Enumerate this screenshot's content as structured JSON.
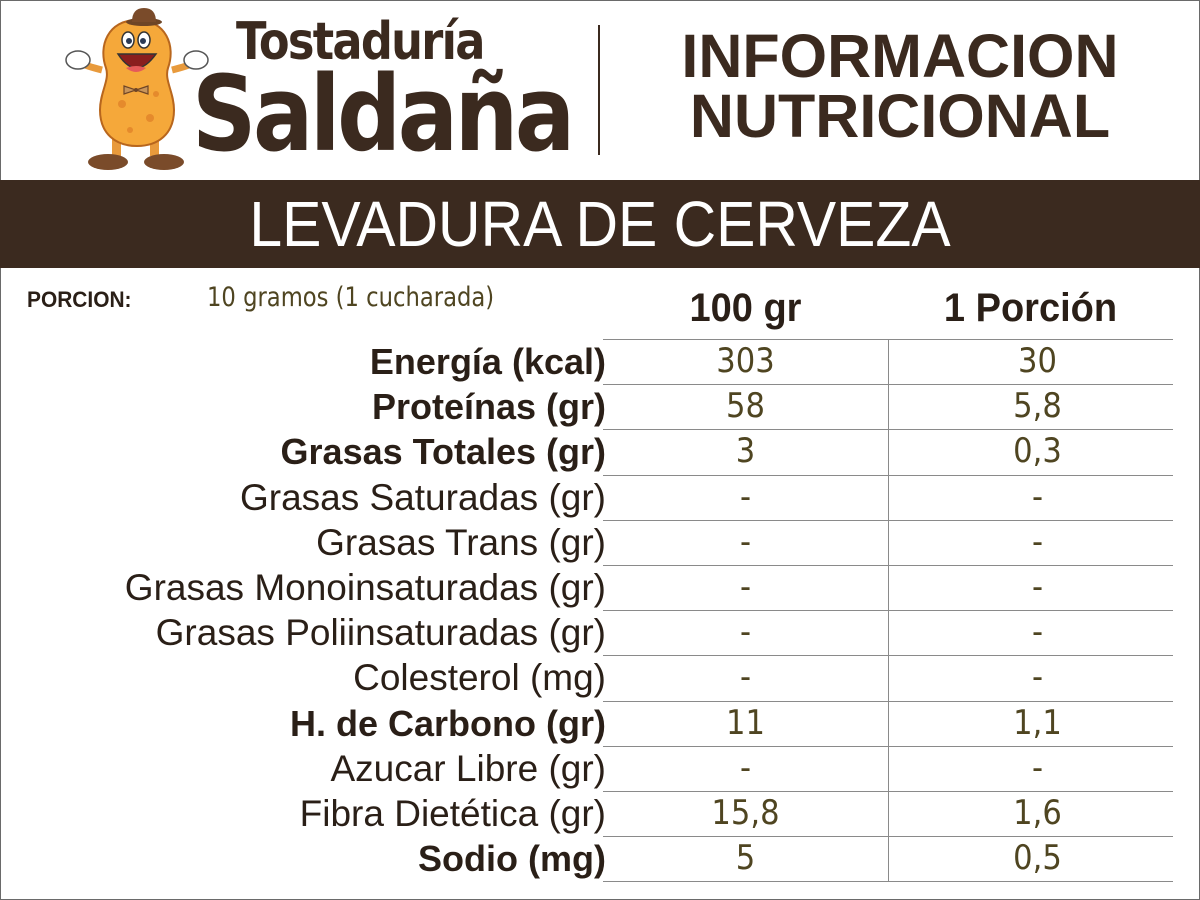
{
  "header": {
    "brand_top": "Tostaduría",
    "brand_main": "Saldaña",
    "title_line1": "INFORMACION",
    "title_line2": "NUTRICIONAL",
    "mascot_icon": "peanut-mascot-icon"
  },
  "banner": {
    "product_name": "LEVADURA DE CERVEZA"
  },
  "portion": {
    "label": "PORCION:",
    "value": "10 gramos (1 cucharada)"
  },
  "columns": {
    "per_100": "100 gr",
    "per_portion": "1 Porción"
  },
  "rows": [
    {
      "label": "Energía (kcal)",
      "bold": true,
      "per_100": "303",
      "per_portion": "30"
    },
    {
      "label": "Proteínas (gr)",
      "bold": true,
      "per_100": "58",
      "per_portion": "5,8"
    },
    {
      "label": "Grasas Totales (gr)",
      "bold": true,
      "per_100": "3",
      "per_portion": "0,3"
    },
    {
      "label": "Grasas Saturadas (gr)",
      "bold": false,
      "per_100": "-",
      "per_portion": "-"
    },
    {
      "label": "Grasas Trans (gr)",
      "bold": false,
      "per_100": "-",
      "per_portion": "-"
    },
    {
      "label": "Grasas Monoinsaturadas (gr)",
      "bold": false,
      "per_100": "-",
      "per_portion": "-"
    },
    {
      "label": "Grasas Poliinsaturadas (gr)",
      "bold": false,
      "per_100": "-",
      "per_portion": "-"
    },
    {
      "label": "Colesterol (mg)",
      "bold": false,
      "per_100": "-",
      "per_portion": "-"
    },
    {
      "label": "H. de Carbono (gr)",
      "bold": true,
      "per_100": "11",
      "per_portion": "1,1"
    },
    {
      "label": "Azucar Libre (gr)",
      "bold": false,
      "per_100": "-",
      "per_portion": "-"
    },
    {
      "label": "Fibra Dietética (gr)",
      "bold": false,
      "per_100": "15,8",
      "per_portion": "1,6"
    },
    {
      "label": "Sodio (mg)",
      "bold": true,
      "per_100": "5",
      "per_portion": "0,5"
    }
  ],
  "colors": {
    "brand_brown": "#3b2a1f",
    "value_olive": "#4f4521",
    "grid_gray": "#8a8a8a",
    "background": "#ffffff"
  }
}
